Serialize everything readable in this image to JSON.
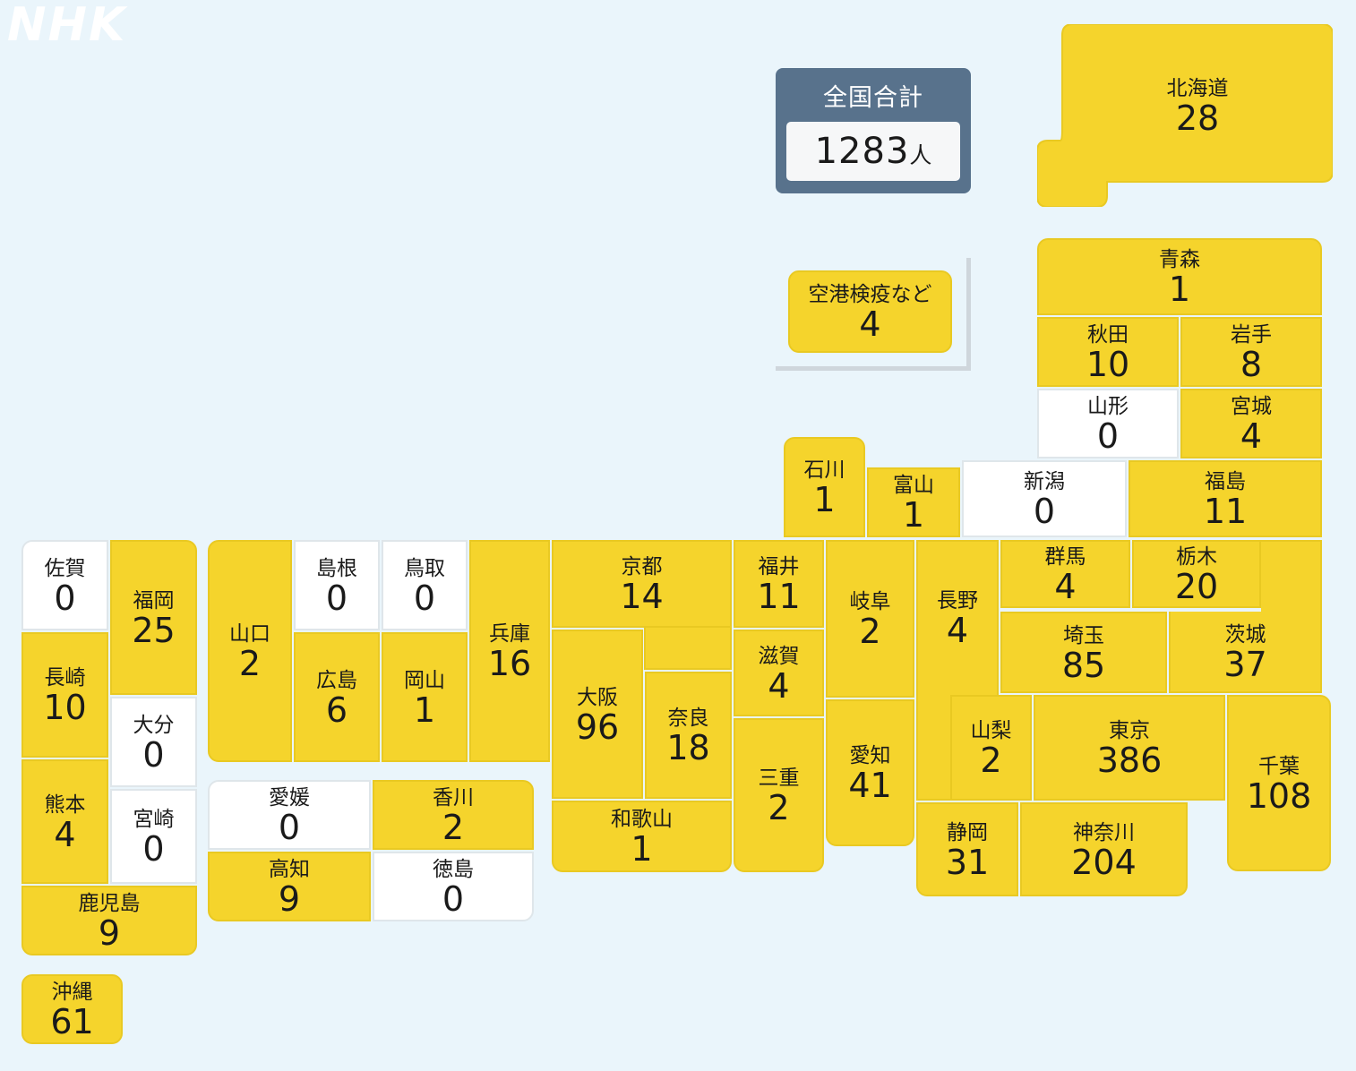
{
  "logo": "NHK",
  "total": {
    "title": "全国合計",
    "value": "1283",
    "unit": "人"
  },
  "colors": {
    "background": "#eaf5fb",
    "has_cases": "#f5d42c",
    "zero_cases": "#ffffff",
    "total_panel": "#58728c"
  },
  "prefectures": {
    "airport": {
      "name": "空港検疫など",
      "value": "4"
    },
    "hokkaido": {
      "name": "北海道",
      "value": "28"
    },
    "aomori": {
      "name": "青森",
      "value": "1"
    },
    "akita": {
      "name": "秋田",
      "value": "10"
    },
    "iwate": {
      "name": "岩手",
      "value": "8"
    },
    "yamagata": {
      "name": "山形",
      "value": "0"
    },
    "miyagi": {
      "name": "宮城",
      "value": "4"
    },
    "ishikawa": {
      "name": "石川",
      "value": "1"
    },
    "toyama": {
      "name": "富山",
      "value": "1"
    },
    "niigata": {
      "name": "新潟",
      "value": "0"
    },
    "fukushima": {
      "name": "福島",
      "value": "11"
    },
    "saga": {
      "name": "佐賀",
      "value": "0"
    },
    "fukuoka": {
      "name": "福岡",
      "value": "25"
    },
    "yamaguchi": {
      "name": "山口",
      "value": "2"
    },
    "shimane": {
      "name": "島根",
      "value": "0"
    },
    "tottori": {
      "name": "鳥取",
      "value": "0"
    },
    "hyogo": {
      "name": "兵庫",
      "value": "16"
    },
    "kyoto": {
      "name": "京都",
      "value": "14"
    },
    "fukui": {
      "name": "福井",
      "value": "11"
    },
    "gifu": {
      "name": "岐阜",
      "value": "2"
    },
    "nagano": {
      "name": "長野",
      "value": "4"
    },
    "gunma": {
      "name": "群馬",
      "value": "4"
    },
    "tochigi": {
      "name": "栃木",
      "value": "20"
    },
    "nagasaki": {
      "name": "長崎",
      "value": "10"
    },
    "hiroshima": {
      "name": "広島",
      "value": "6"
    },
    "okayama": {
      "name": "岡山",
      "value": "1"
    },
    "shiga": {
      "name": "滋賀",
      "value": "4"
    },
    "saitama": {
      "name": "埼玉",
      "value": "85"
    },
    "ibaraki": {
      "name": "茨城",
      "value": "37"
    },
    "oita": {
      "name": "大分",
      "value": "0"
    },
    "osaka": {
      "name": "大阪",
      "value": "96"
    },
    "nara": {
      "name": "奈良",
      "value": "18"
    },
    "yamanashi": {
      "name": "山梨",
      "value": "2"
    },
    "tokyo": {
      "name": "東京",
      "value": "386"
    },
    "chiba": {
      "name": "千葉",
      "value": "108"
    },
    "aichi": {
      "name": "愛知",
      "value": "41"
    },
    "mie": {
      "name": "三重",
      "value": "2"
    },
    "kumamoto": {
      "name": "熊本",
      "value": "4"
    },
    "miyazaki": {
      "name": "宮崎",
      "value": "0"
    },
    "ehime": {
      "name": "愛媛",
      "value": "0"
    },
    "kagawa": {
      "name": "香川",
      "value": "2"
    },
    "wakayama": {
      "name": "和歌山",
      "value": "1"
    },
    "shizuoka": {
      "name": "静岡",
      "value": "31"
    },
    "kanagawa": {
      "name": "神奈川",
      "value": "204"
    },
    "kochi": {
      "name": "高知",
      "value": "9"
    },
    "tokushima": {
      "name": "徳島",
      "value": "0"
    },
    "kagoshima": {
      "name": "鹿児島",
      "value": "9"
    },
    "okinawa": {
      "name": "沖縄",
      "value": "61"
    }
  }
}
